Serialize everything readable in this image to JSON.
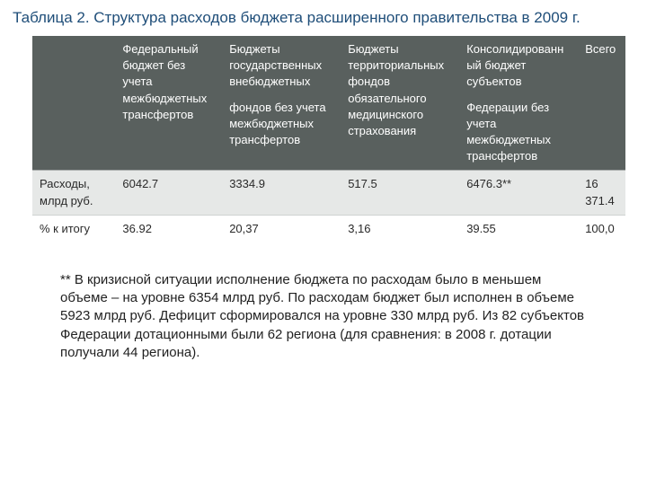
{
  "title": "Таблица 2. Структура расходов бюджета расширенного правительства в 2009 г.",
  "table": {
    "columns": [
      {
        "text": ""
      },
      {
        "text": "Федеральный бюджет без учета межбюджетных трансфертов"
      },
      {
        "para1": "Бюджеты государственных внебюджетных",
        "para2": "фондов без учета межбюджетных трансфертов"
      },
      {
        "text": "Бюджеты территориальных фондов обязательного медицинского страхования"
      },
      {
        "para1": "Консолидированный бюджет субъектов",
        "para2": "Федерации без учета межбюджетных трансфертов"
      },
      {
        "text": "Всего"
      }
    ],
    "rows": [
      {
        "label": "Расходы, млрд руб.",
        "cells": [
          "6042.7",
          "3334.9",
          "517.5",
          "6476.3**",
          "16 371.4"
        ]
      },
      {
        "label": "% к итогу",
        "cells": [
          "36.92",
          "20,37",
          "3,16",
          "39.55",
          "100,0"
        ]
      }
    ]
  },
  "footnote": "** В кризисной ситуации исполнение бюджета по расходам было в меньшем объеме – на уровне 6354 млрд руб. По расходам бюджет был исполнен в объеме 5923 млрд руб. Дефицит сформировался на уровне 330 млрд руб. Из 82 субъектов Федерации дотационными были 62 региона (для сравнения: в 2008 г. дотации получали 44 региона).",
  "style": {
    "title_color": "#1f4e79",
    "header_bg": "#59605e",
    "header_fg": "#ffffff",
    "row1_bg": "#e6e8e7",
    "row2_bg": "#ffffff",
    "body_font_size": 13,
    "title_font_size": 17,
    "footnote_font_size": 15
  }
}
